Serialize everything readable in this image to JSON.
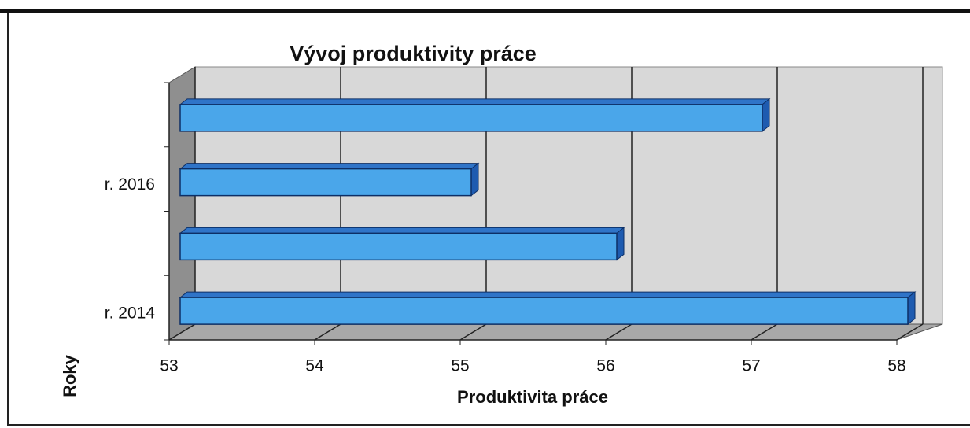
{
  "chart_data": {
    "type": "bar3d",
    "orientation": "horizontal",
    "title": "Vývoj produktivity práce",
    "x_label": "Produktivita práce",
    "y_label": "Roky",
    "categories": [
      "r. 2014",
      null,
      "r. 2016",
      null
    ],
    "values": [
      58,
      56,
      55,
      57
    ],
    "color": "#4aa6ea",
    "xlim": [
      53,
      58
    ],
    "xticks": [
      53,
      54,
      55,
      56,
      57,
      58
    ],
    "grid": true
  }
}
